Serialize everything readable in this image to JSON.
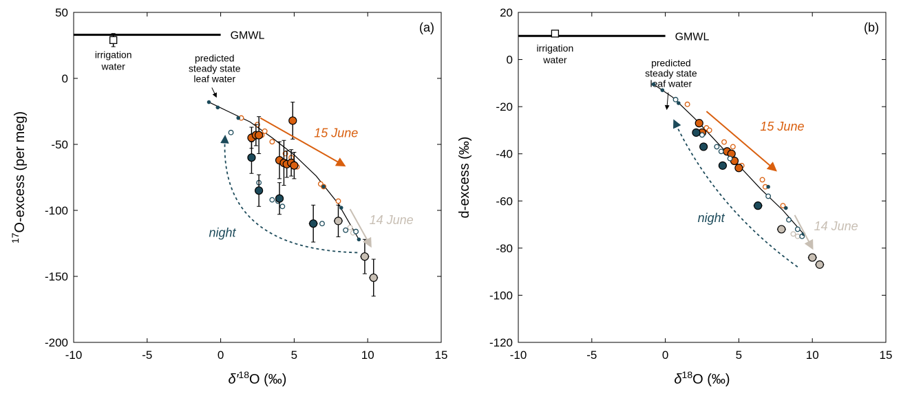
{
  "colors": {
    "june15": "#d95f0e",
    "june14": "#c8bfb4",
    "night": "#1c4a5a",
    "model": "#000000",
    "errorbar": "#000000"
  },
  "chart_data": [
    {
      "type": "scatter",
      "panel_label": "(a)",
      "xlabel_sym": "δ′",
      "xlabel_sup": "18",
      "xlabel_rest": "O (‰)",
      "ylabel_sup": "17",
      "ylabel_rest": "O-excess (per meg)",
      "xlim": [
        -10,
        15
      ],
      "ylim": [
        -200,
        50
      ],
      "xticks": [
        -10,
        -5,
        0,
        5,
        10,
        15
      ],
      "yticks": [
        -200,
        -150,
        -100,
        -50,
        0,
        50
      ],
      "gmwl": {
        "label": "GMWL",
        "x": [
          -10,
          0
        ],
        "y": 33
      },
      "irrigation": {
        "label_line1": "irrigation",
        "label_line2": "water",
        "x": -7.3,
        "y": 29,
        "yerr": 5
      },
      "steady_state": {
        "line1": "predicted",
        "line2": "steady state",
        "line3": "leaf water"
      },
      "model_curve": {
        "x": [
          -0.8,
          0.5,
          2,
          3.5,
          5,
          6.5,
          8,
          9.4
        ],
        "y": [
          -18,
          -25,
          -33,
          -45,
          -58,
          -74,
          -95,
          -122
        ]
      },
      "model_points": {
        "x": [
          -0.8,
          -0.2,
          1.2,
          7.0,
          8.2,
          9.4
        ],
        "y": [
          -18,
          -22,
          -30,
          -82,
          -98,
          -122
        ]
      },
      "series": [
        {
          "name": "15 June",
          "label": "15 June",
          "large": {
            "x": [
              2.1,
              2.4,
              2.6,
              4.0,
              4.3,
              4.5,
              4.8,
              5.0,
              4.9
            ],
            "y": [
              -45,
              -43,
              -43,
              -62,
              -64,
              -65,
              -64,
              -66,
              -32
            ],
            "xerr": [
              0.15,
              0.15,
              0.15,
              0.15,
              0.15,
              0.15,
              0.15,
              0.15,
              0.15
            ],
            "yerr": [
              8,
              8,
              14,
              14,
              17,
              10,
              10,
              10,
              14
            ]
          },
          "small": {
            "x": [
              1.4,
              2.5,
              2.8,
              3.0,
              3.5,
              4.4,
              4.8,
              5.2,
              6.8,
              7.0,
              8.0
            ],
            "y": [
              -30,
              -35,
              -43,
              -40,
              -48,
              -57,
              -60,
              -67,
              -80,
              -82,
              -93
            ]
          }
        },
        {
          "name": "14 June",
          "label": "14 June",
          "large": {
            "x": [
              8.0,
              9.8,
              10.4
            ],
            "y": [
              -108,
              -135,
              -151
            ],
            "xerr": [
              0.3,
              0.3,
              0.3
            ],
            "yerr": [
              12,
              13,
              14
            ]
          },
          "small": {
            "x": [
              8.8,
              9.0
            ],
            "y": [
              -113,
              -117
            ]
          }
        },
        {
          "name": "night",
          "label": "night",
          "large": {
            "x": [
              2.1,
              2.6,
              4.0,
              6.3
            ],
            "y": [
              -60,
              -85,
              -91,
              -110
            ],
            "xerr": [
              0.25,
              0.25,
              0.25,
              0.3
            ],
            "yerr": [
              12,
              12,
              12,
              14
            ]
          },
          "small": {
            "x": [
              0.7,
              2.6,
              3.5,
              3.9,
              4.2,
              6.9,
              8.5,
              9.2
            ],
            "y": [
              -41,
              -79,
              -92,
              -93,
              -97,
              -110,
              -115,
              -116
            ]
          }
        }
      ],
      "annotations": {
        "june15_arrow": {
          "x": [
            2.7,
            8.4
          ],
          "y": [
            -30,
            -66
          ]
        },
        "june14_arrow": {
          "x": [
            8.8,
            10.2
          ],
          "y": [
            -99,
            -127
          ]
        },
        "night_arrow": {
          "x": [
            9.3,
            0.3
          ],
          "y": [
            -132,
            -44
          ]
        },
        "ss_arrow": {
          "x": [
            -0.6,
            -0.3
          ],
          "y": [
            -7,
            -14
          ]
        }
      }
    },
    {
      "type": "scatter",
      "panel_label": "(b)",
      "xlabel_sym": "δ",
      "xlabel_sup": "18",
      "xlabel_rest": "O (‰)",
      "ylabel_sup": "",
      "ylabel_rest": "d-excess (‰)",
      "xlim": [
        -10,
        15
      ],
      "ylim": [
        -120,
        20
      ],
      "xticks": [
        -10,
        -5,
        0,
        5,
        10,
        15
      ],
      "yticks": [
        -120,
        -100,
        -80,
        -60,
        -40,
        -20,
        0,
        20
      ],
      "gmwl": {
        "label": "GMWL",
        "x": [
          -10,
          0
        ],
        "y": 10
      },
      "irrigation": {
        "label_line1": "irrigation",
        "label_line2": "water",
        "x": -7.5,
        "y": 11,
        "yerr": 0
      },
      "steady_state": {
        "line1": "predicted",
        "line2": "steady state",
        "line3": "leaf water"
      },
      "model_curve": {
        "x": [
          -0.8,
          0.5,
          2,
          3.5,
          5,
          6.5,
          8,
          9.4
        ],
        "y": [
          -10.5,
          -16,
          -25,
          -35,
          -45,
          -55,
          -64,
          -74
        ]
      },
      "model_points": {
        "x": [
          -0.8,
          -0.2,
          0.9,
          7.0,
          8.2,
          9.4
        ],
        "y": [
          -10.5,
          -13,
          -18.5,
          -54,
          -63,
          -74
        ]
      },
      "series": [
        {
          "name": "15 June",
          "label": "15 June",
          "large": {
            "x": [
              2.3,
              2.5,
              4.2,
              4.5,
              4.7,
              5.0
            ],
            "y": [
              -27,
              -31,
              -39,
              -40,
              -43,
              -46
            ],
            "xerr": [
              0.15,
              0.15,
              0.15,
              0.15,
              0.15,
              0.15
            ],
            "yerr": [
              0,
              0,
              0,
              0,
              0,
              0
            ]
          },
          "small": {
            "x": [
              1.5,
              2.8,
              3.0,
              4.0,
              4.6,
              5.2,
              6.6,
              6.8,
              8.0
            ],
            "y": [
              -19,
              -29,
              -30,
              -35,
              -37,
              -45,
              -51,
              -54,
              -62
            ]
          }
        },
        {
          "name": "14 June",
          "label": "14 June",
          "large": {
            "x": [
              7.9,
              10.0,
              10.5
            ],
            "y": [
              -72,
              -84,
              -87
            ],
            "xerr": [
              0.3,
              0.3,
              0.3
            ],
            "yerr": [
              0,
              0,
              0
            ]
          },
          "small": {
            "x": [
              8.7,
              9.0
            ],
            "y": [
              -74,
              -75
            ]
          }
        },
        {
          "name": "night",
          "label": "night",
          "large": {
            "x": [
              2.1,
              2.6,
              3.9,
              6.3
            ],
            "y": [
              -31,
              -37,
              -45,
              -62
            ],
            "xerr": [
              0.25,
              0.25,
              0.25,
              0.3
            ],
            "yerr": [
              0,
              0,
              0,
              0
            ]
          },
          "small": {
            "x": [
              0.7,
              2.5,
              3.5,
              3.8,
              4.4,
              7.0,
              8.4,
              9.0,
              9.3
            ],
            "y": [
              -17,
              -32,
              -37,
              -39,
              -42,
              -58,
              -68,
              -72,
              -75
            ]
          }
        }
      ],
      "annotations": {
        "june15_arrow": {
          "x": [
            2.8,
            7.5
          ],
          "y": [
            -22,
            -47
          ]
        },
        "june14_arrow": {
          "x": [
            8.8,
            10.0
          ],
          "y": [
            -66,
            -80
          ]
        },
        "night_arrow": {
          "x": [
            9.0,
            0.6
          ],
          "y": [
            -88,
            -26
          ]
        },
        "ss_arrow": {
          "x": [
            0.2,
            0.1
          ],
          "y": [
            -14,
            -21
          ]
        }
      }
    }
  ]
}
